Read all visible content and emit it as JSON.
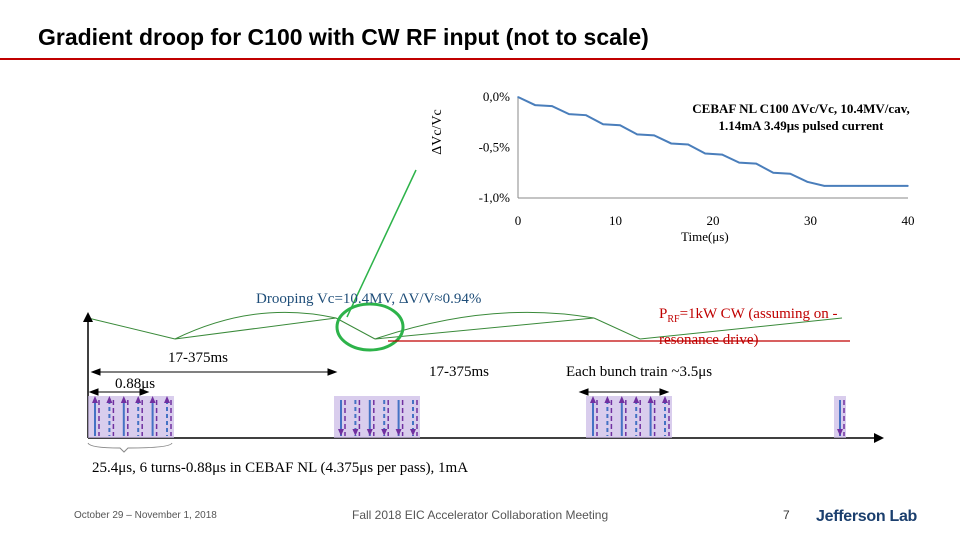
{
  "slide": {
    "title": "Gradient droop for C100 with CW RF input (not to scale)",
    "accent_color": "#c00000"
  },
  "chart_data": {
    "type": "line",
    "x": [
      0,
      1.75,
      3.49,
      5.24,
      6.98,
      8.73,
      10.47,
      12.22,
      13.96,
      15.71,
      17.45,
      19.2,
      20.94,
      22.69,
      24.43,
      26.18,
      27.92,
      29.67,
      31.41,
      33.16,
      34.9,
      40
    ],
    "y": [
      0,
      -0.08,
      -0.09,
      -0.17,
      -0.18,
      -0.27,
      -0.28,
      -0.37,
      -0.38,
      -0.46,
      -0.47,
      -0.56,
      -0.57,
      -0.65,
      -0.66,
      -0.75,
      -0.76,
      -0.84,
      -0.88,
      -0.88,
      -0.88,
      -0.88
    ],
    "series": [
      {
        "name": "CEBAF NL C100 ΔVc/Vc, 10.4MV/cav, 1.14mA 3.49μs pulsed current",
        "color": "#4a7ebb"
      }
    ],
    "xlabel": "Time(μs)",
    "ylabel": "ΔVc/Vc",
    "xlim": [
      0,
      40
    ],
    "ylim": [
      -1.0,
      0
    ],
    "xticks": [
      "0",
      "10",
      "20",
      "30",
      "40"
    ],
    "yticks": [
      "0,0%",
      "-0,5%",
      "-1,0%"
    ],
    "legend_lines": [
      "CEBAF NL C100 ΔVc/Vc, 10.4MV/cav,",
      "1.14mA 3.49μs pulsed current"
    ],
    "grid": false
  },
  "diagram": {
    "droop_label": "Drooping Vc=10.4MV, ΔV/V≈0.94%",
    "prf_label_main": "P",
    "prf_label_sub": "RF",
    "prf_label_rest": "=1kW CW (assuming on -resonance drive)",
    "gap1_label": "17-375ms",
    "gap2_label": "17-375ms",
    "train_label": "Each bunch train ~3.5μs",
    "spacing_label": "0.88μs",
    "beam_label": "25.4μs, 6 turns-0.88μs in CEBAF NL (4.375μs per pass), 1mA",
    "highlight_color": "#2db34a",
    "droop_color": "#3a8a3a",
    "bunch_color": "#7030a0",
    "bunch_fill": "#c9b8e6"
  },
  "footer": {
    "dates": "October 29 – November 1, 2018",
    "meeting": "Fall 2018 EIC Accelerator Collaboration Meeting",
    "page": "7",
    "logo": "Jefferson Lab"
  }
}
